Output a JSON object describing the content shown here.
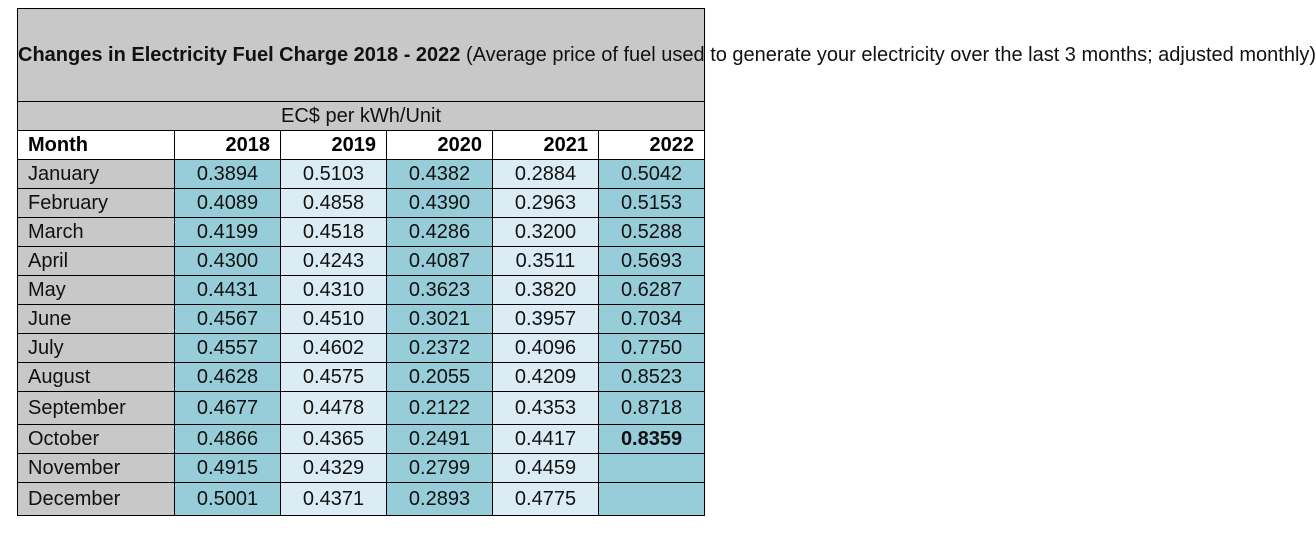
{
  "title": {
    "bold": "Changes in Electricity Fuel Charge 2018 - 2022",
    "rest": "(Average price of fuel used to generate your electricity over the last 3 months; adjusted monthly)"
  },
  "unit": "EC$ per kWh/Unit",
  "header": {
    "month": "Month",
    "years": [
      "2018",
      "2019",
      "2020",
      "2021",
      "2022"
    ]
  },
  "rows": [
    {
      "month": "January",
      "values": [
        "0.3894",
        "0.5103",
        "0.4382",
        "0.2884",
        "0.5042"
      ]
    },
    {
      "month": "February",
      "values": [
        "0.4089",
        "0.4858",
        "0.4390",
        "0.2963",
        "0.5153"
      ]
    },
    {
      "month": "March",
      "values": [
        "0.4199",
        "0.4518",
        "0.4286",
        "0.3200",
        "0.5288"
      ]
    },
    {
      "month": "April",
      "values": [
        "0.4300",
        "0.4243",
        "0.4087",
        "0.3511",
        "0.5693"
      ]
    },
    {
      "month": "May",
      "values": [
        "0.4431",
        "0.4310",
        "0.3623",
        "0.3820",
        "0.6287"
      ]
    },
    {
      "month": "June",
      "values": [
        "0.4567",
        "0.4510",
        "0.3021",
        "0.3957",
        "0.7034"
      ]
    },
    {
      "month": "July",
      "values": [
        "0.4557",
        "0.4602",
        "0.2372",
        "0.4096",
        "0.7750"
      ]
    },
    {
      "month": "August",
      "values": [
        "0.4628",
        "0.4575",
        "0.2055",
        "0.4209",
        "0.8523"
      ]
    },
    {
      "month": "September",
      "values": [
        "0.4677",
        "0.4478",
        "0.2122",
        "0.4353",
        "0.8718"
      ]
    },
    {
      "month": "October",
      "values": [
        "0.4866",
        "0.4365",
        "0.2491",
        "0.4417",
        "0.8359"
      ]
    },
    {
      "month": "November",
      "values": [
        "0.4915",
        "0.4329",
        "0.2799",
        "0.4459",
        ""
      ]
    },
    {
      "month": "December",
      "values": [
        "0.5001",
        "0.4371",
        "0.2893",
        "0.4775",
        ""
      ]
    }
  ],
  "colors": {
    "gray": "#c8c8c8",
    "teal": "#97cdd9",
    "light_blue": "#dcecf5"
  }
}
